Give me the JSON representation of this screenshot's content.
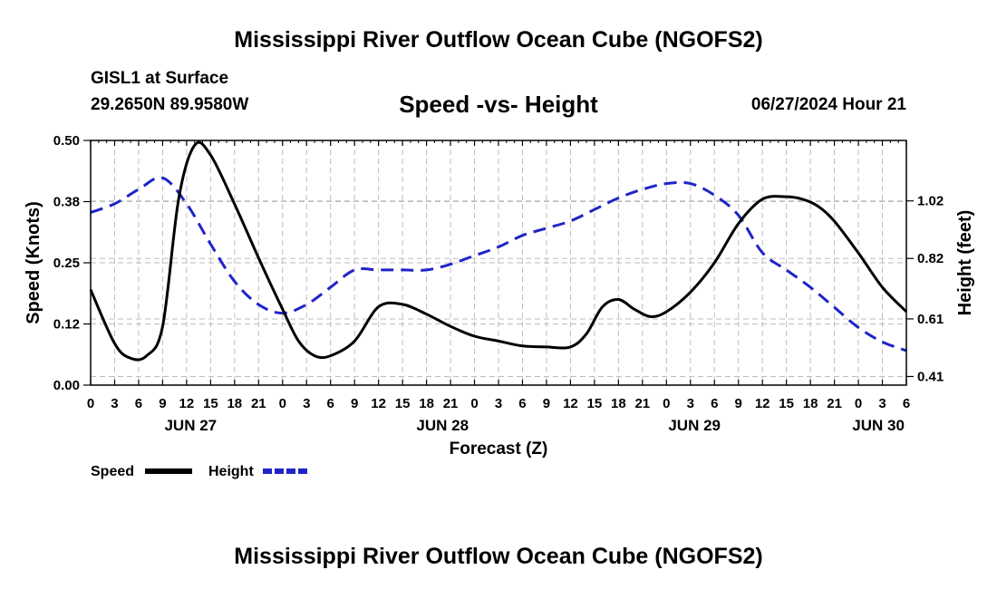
{
  "header": {
    "title": "Mississippi River Outflow Ocean Cube (NGOFS2)",
    "station": "GISL1 at Surface",
    "coords": "29.2650N  89.9580W",
    "subtitle": "Speed -vs- Height",
    "datestamp": "06/27/2024 Hour 21"
  },
  "footer": {
    "title": "Mississippi River Outflow Ocean Cube (NGOFS2)"
  },
  "chart_data": {
    "type": "line",
    "title": "Speed -vs- Height",
    "xlabel": "Forecast (Z)",
    "ylabel": "Speed (Knots)",
    "y2label": "Height (feet)",
    "grid": true,
    "x_unit": "forecast hours from 2024-06-26 00Z",
    "xlim": [
      0,
      102
    ],
    "x_ticks": [
      0,
      3,
      6,
      9,
      12,
      15,
      18,
      21,
      24,
      27,
      30,
      33,
      36,
      39,
      42,
      45,
      48,
      51,
      54,
      57,
      60,
      63,
      66,
      69,
      72,
      75,
      78,
      81,
      84,
      87,
      90,
      93,
      96,
      99,
      102
    ],
    "x_tick_labels": [
      "0",
      "3",
      "6",
      "9",
      "12",
      "15",
      "18",
      "21",
      "0",
      "3",
      "6",
      "9",
      "12",
      "15",
      "18",
      "21",
      "0",
      "3",
      "6",
      "9",
      "12",
      "15",
      "18",
      "21",
      "0",
      "3",
      "6",
      "9",
      "12",
      "15",
      "18",
      "21",
      "0",
      "3",
      "6"
    ],
    "day_labels": [
      {
        "x": 12.5,
        "text": "JUN 27"
      },
      {
        "x": 44,
        "text": "JUN 28"
      },
      {
        "x": 75.5,
        "text": "JUN 29"
      },
      {
        "x": 98.5,
        "text": "JUN 30"
      }
    ],
    "ylim": [
      0,
      0.5
    ],
    "y_ticks": [
      0,
      0.125,
      0.25,
      0.375,
      0.5
    ],
    "y_tick_labels": [
      "0.00",
      "0.12",
      "0.25",
      "0.38",
      "0.50"
    ],
    "y2lim": [
      0.38,
      1.23
    ],
    "y2_ticks": [
      0.41,
      0.61,
      0.82,
      1.02
    ],
    "y2_tick_labels": [
      "0.41",
      "0.61",
      "0.82",
      "1.02"
    ],
    "series": [
      {
        "name": "Speed",
        "axis": "left",
        "color": "#000000",
        "dash": "solid",
        "x": [
          0,
          3,
          5,
          7,
          9,
          11,
          13,
          15,
          18,
          21,
          24,
          26,
          28,
          30,
          33,
          36,
          39,
          42,
          45,
          48,
          51,
          54,
          57,
          60,
          62,
          64,
          66,
          68,
          70,
          72,
          75,
          78,
          81,
          84,
          87,
          89,
          91,
          93,
          96,
          99,
          102
        ],
        "values": [
          0.195,
          0.085,
          0.055,
          0.06,
          0.12,
          0.38,
          0.49,
          0.47,
          0.37,
          0.26,
          0.155,
          0.09,
          0.06,
          0.06,
          0.09,
          0.16,
          0.165,
          0.145,
          0.12,
          0.1,
          0.09,
          0.08,
          0.078,
          0.078,
          0.105,
          0.16,
          0.175,
          0.155,
          0.14,
          0.15,
          0.19,
          0.25,
          0.33,
          0.38,
          0.385,
          0.38,
          0.365,
          0.335,
          0.27,
          0.2,
          0.15
        ]
      },
      {
        "name": "Height",
        "axis": "right",
        "color": "#1f24c8",
        "dash": "dashed",
        "x": [
          0,
          3,
          6,
          9,
          12,
          15,
          18,
          21,
          24,
          27,
          30,
          33,
          36,
          39,
          42,
          45,
          48,
          51,
          54,
          57,
          60,
          63,
          66,
          69,
          72,
          75,
          78,
          81,
          84,
          87,
          90,
          93,
          96,
          99,
          102
        ],
        "values": [
          0.98,
          1.01,
          1.06,
          1.1,
          1.01,
          0.87,
          0.74,
          0.66,
          0.63,
          0.66,
          0.72,
          0.78,
          0.78,
          0.78,
          0.78,
          0.8,
          0.83,
          0.86,
          0.9,
          0.925,
          0.95,
          0.99,
          1.03,
          1.06,
          1.08,
          1.08,
          1.04,
          0.97,
          0.84,
          0.78,
          0.72,
          0.65,
          0.58,
          0.53,
          0.5
        ]
      }
    ],
    "legend": [
      {
        "name": "Speed",
        "color": "#000000",
        "dash": "solid"
      },
      {
        "name": "Height",
        "color": "#1f24c8",
        "dash": "dashed"
      }
    ],
    "legend_placement": "bottom-left"
  }
}
